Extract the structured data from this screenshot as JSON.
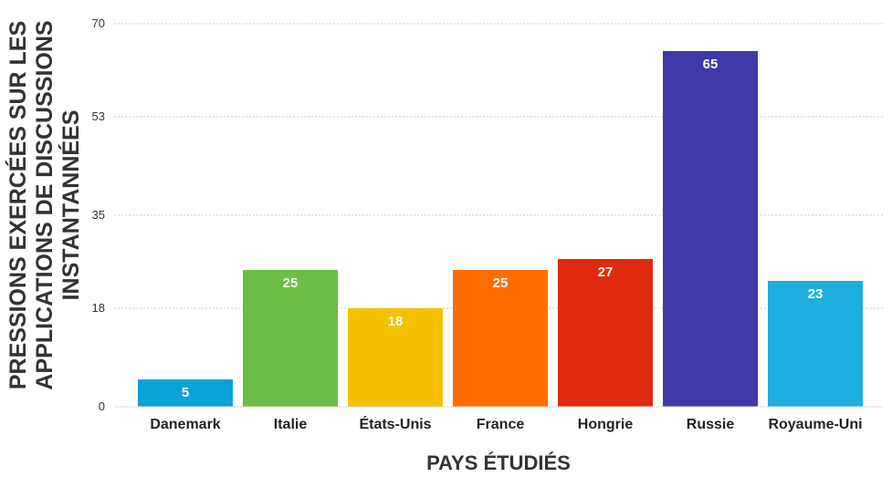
{
  "chart_data": {
    "type": "bar",
    "categories": [
      "Danemark",
      "Italie",
      "États-Unis",
      "France",
      "Hongrie",
      "Russie",
      "Royaume-Uni"
    ],
    "values": [
      5,
      25,
      18,
      25,
      27,
      65,
      23
    ],
    "colors": [
      "#0ba2d8",
      "#6cbd45",
      "#f5c000",
      "#ff6d00",
      "#df2a0f",
      "#3f3aa6",
      "#1eaee0"
    ],
    "xlabel": "PAYS ÉTUDIÉS",
    "ylabel": "PRESSIONS EXERCÉES SUR LES APPLICATIONS DE DISCUSSIONS INSTANTANNÉES",
    "ylabel_lines": [
      "PRESSIONS EXERCÉES SUR LES",
      "APPLICATIONS DE DISCUSSIONS",
      "INSTANTANNÉES"
    ],
    "yticks": [
      0,
      18,
      35,
      53,
      70
    ],
    "ylim": [
      0,
      70
    ],
    "grid": true,
    "data_labels": true
  }
}
